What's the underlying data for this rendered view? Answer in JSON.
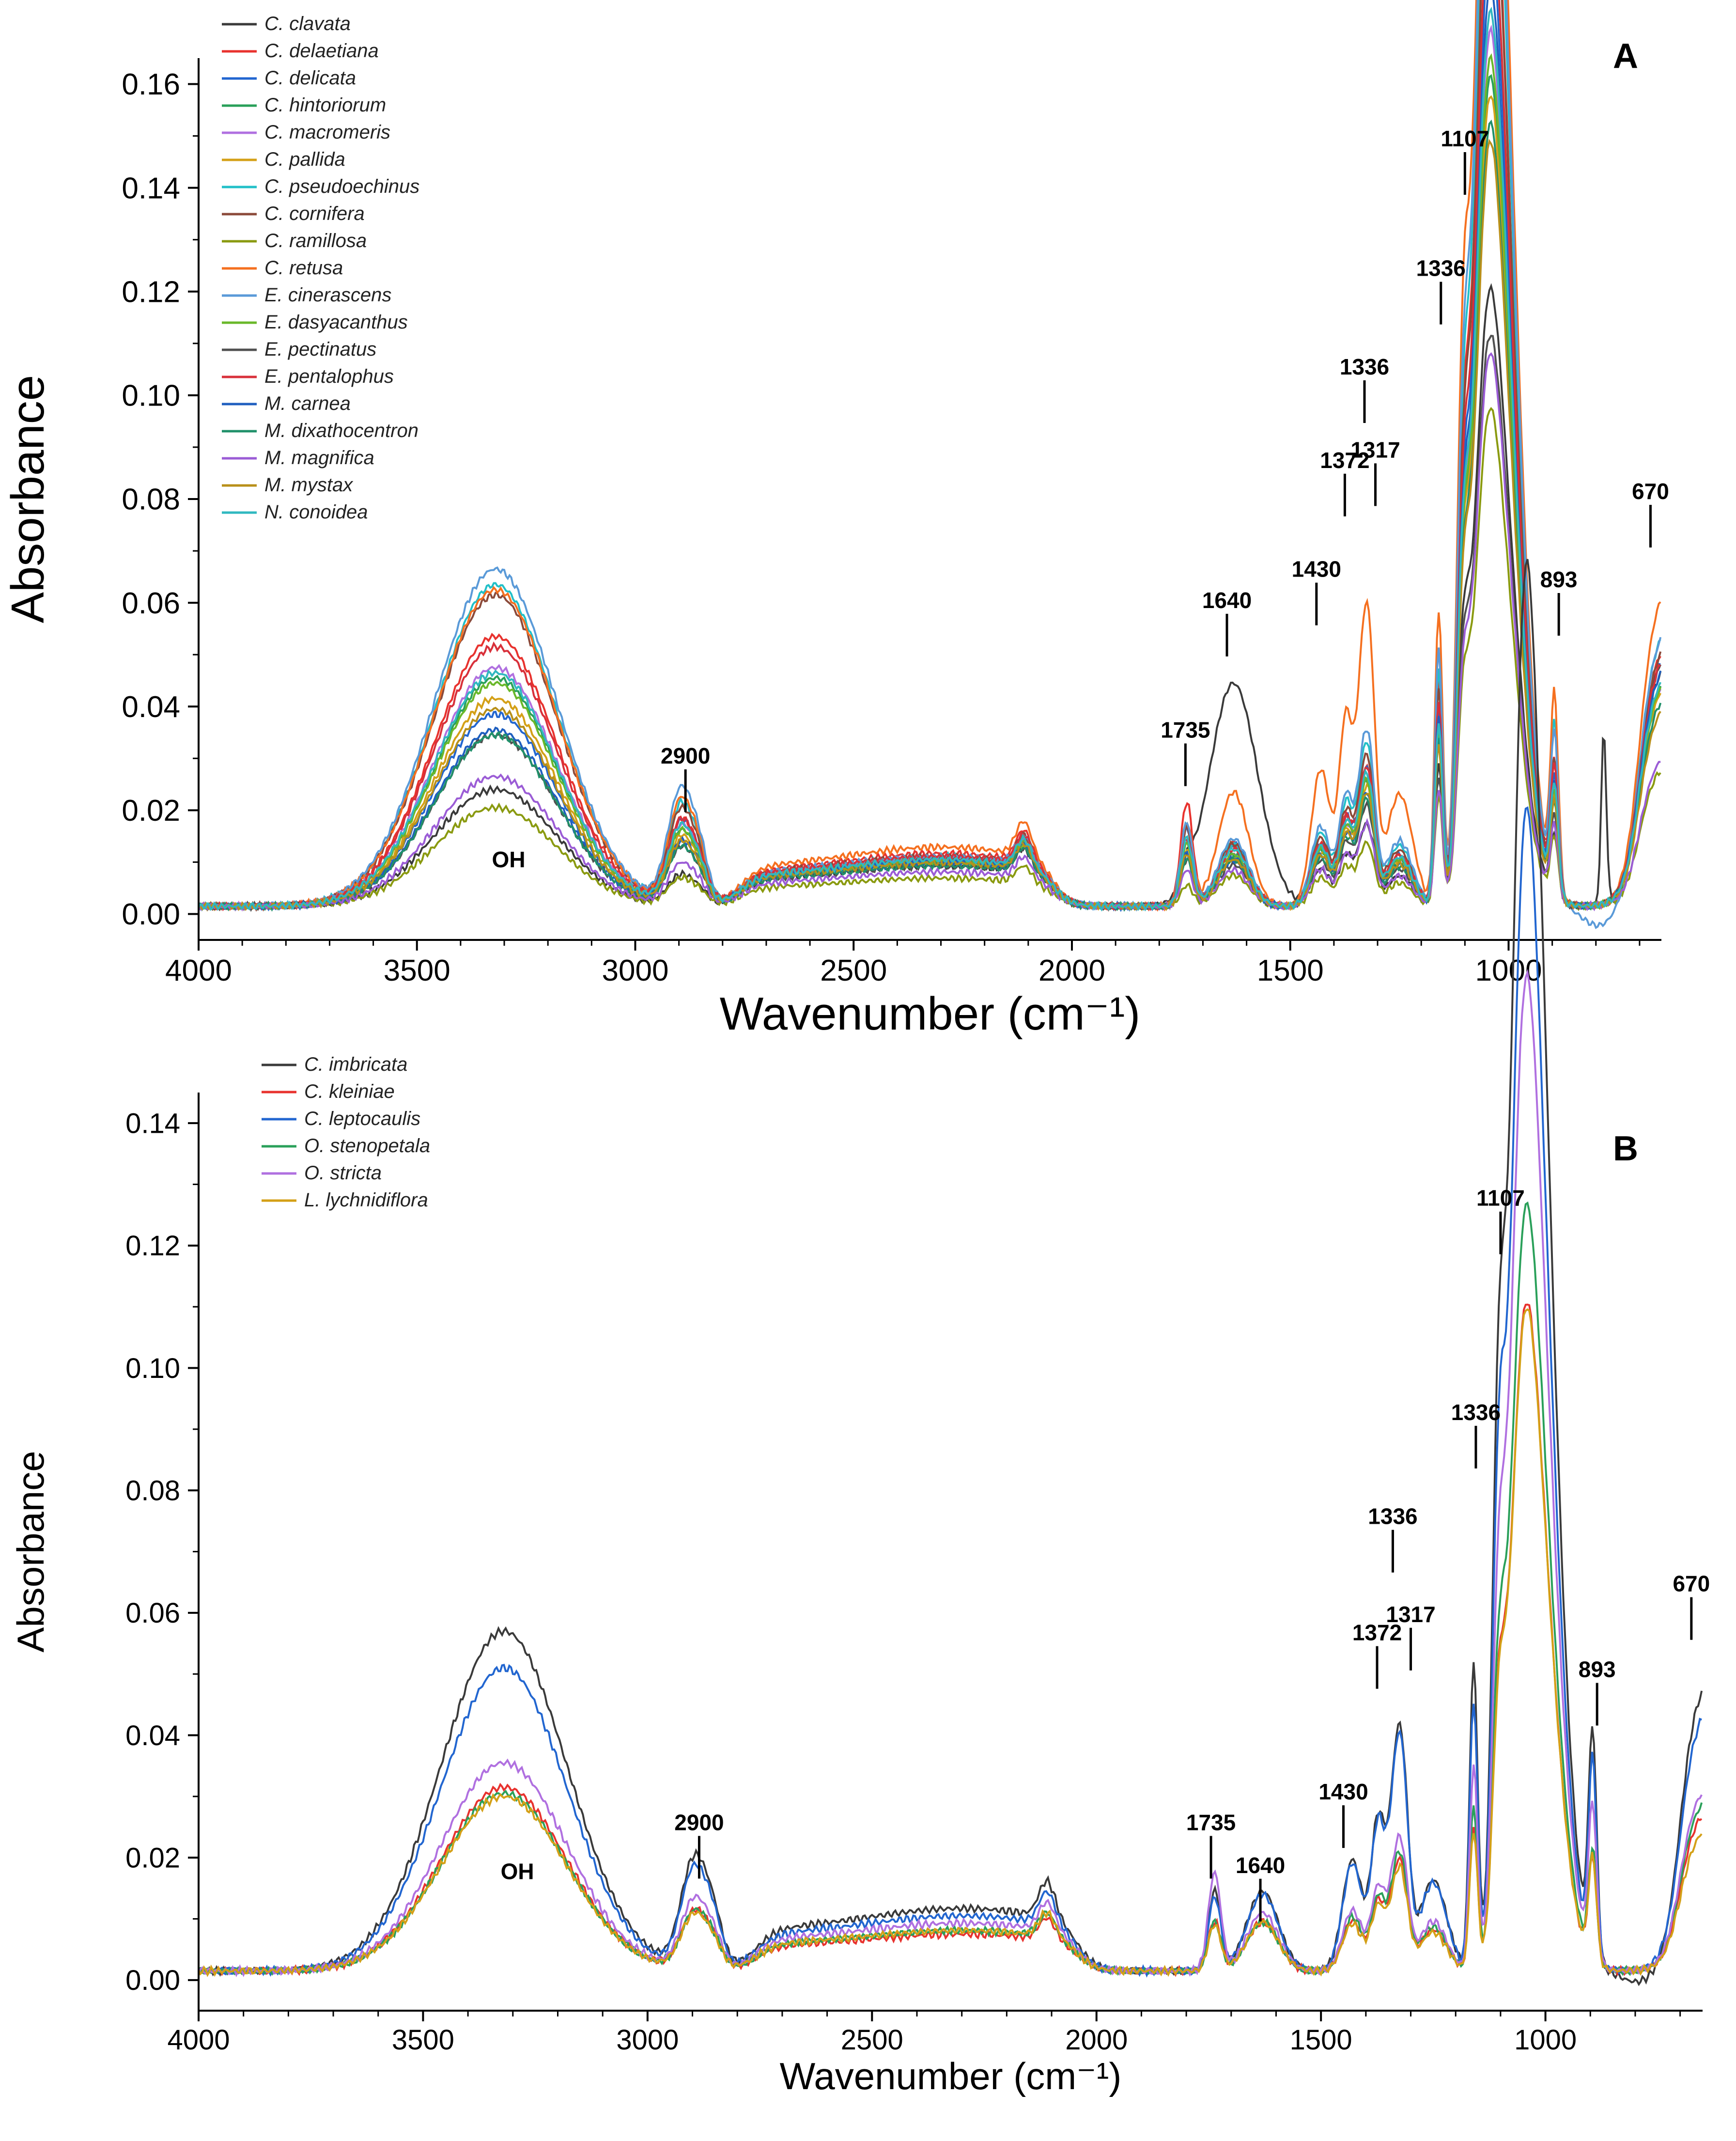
{
  "chart_data": [
    {
      "type": "line",
      "panel_label": "A",
      "xlabel": "Wavenumber (cm⁻¹)",
      "ylabel": "Absorbance",
      "xlim": [
        4000,
        650
      ],
      "ylim": [
        -0.005,
        0.165
      ],
      "x_ticks": [
        "4000",
        "3500",
        "3000",
        "2500",
        "2000",
        "1500",
        "1000"
      ],
      "y_ticks": [
        "0.00",
        "0.02",
        "0.04",
        "0.06",
        "0.08",
        "0.10",
        "0.12",
        "0.14",
        "0.16"
      ],
      "legend_position": "top-left",
      "annotations": [
        {
          "text": "2900",
          "x": 2885,
          "y": 0.029
        },
        {
          "text": "OH",
          "x": 3290,
          "y": 0.009
        },
        {
          "text": "1735",
          "x": 1740,
          "y": 0.034
        },
        {
          "text": "1640",
          "x": 1645,
          "y": 0.059
        },
        {
          "text": "1430",
          "x": 1440,
          "y": 0.065
        },
        {
          "text": "1372",
          "x": 1375,
          "y": 0.086
        },
        {
          "text": "1336",
          "x": 1330,
          "y": 0.104
        },
        {
          "text": "1317",
          "x": 1305,
          "y": 0.088
        },
        {
          "text": "1336",
          "x": 1155,
          "y": 0.123
        },
        {
          "text": "1107",
          "x": 1100,
          "y": 0.148
        },
        {
          "text": "893",
          "x": 885,
          "y": 0.063
        },
        {
          "text": "670",
          "x": 675,
          "y": 0.08
        }
      ],
      "series": [
        {
          "name": "C. clavata",
          "color": "#3a3a3a",
          "oh": 0.0225,
          "ch": 0.0058,
          "sugar": 0.0065,
          "c1735": 0.004,
          "c1640": 0.043,
          "mid": 0.013,
          "main": 0.067,
          "p1107": 0.036,
          "p893": 0.012,
          "p670": 0.048,
          "extra": "sharp780"
        },
        {
          "name": "C. delaetiana",
          "color": "#e8322e",
          "oh": 0.052,
          "ch": 0.016,
          "sugar": 0.0085,
          "c1735": 0.02,
          "c1640": 0.012,
          "mid": 0.022,
          "main": 0.12,
          "p1107": 0.058,
          "p893": 0.025,
          "p670": 0.052
        },
        {
          "name": "C. delicata",
          "color": "#2266d0",
          "oh": 0.037,
          "ch": 0.016,
          "sugar": 0.0075,
          "c1735": 0.015,
          "c1640": 0.012,
          "mid": 0.022,
          "main": 0.105,
          "p1107": 0.05,
          "p893": 0.022,
          "p670": 0.05
        },
        {
          "name": "C. hintoriorum",
          "color": "#2aa05a",
          "oh": 0.044,
          "ch": 0.014,
          "sugar": 0.0075,
          "c1735": 0.012,
          "c1640": 0.01,
          "mid": 0.02,
          "main": 0.09,
          "p1107": 0.045,
          "p893": 0.02,
          "p670": 0.045
        },
        {
          "name": "C. macromeris",
          "color": "#b070e0",
          "oh": 0.046,
          "ch": 0.015,
          "sugar": 0.0075,
          "c1735": 0.012,
          "c1640": 0.01,
          "mid": 0.02,
          "main": 0.095,
          "p1107": 0.047,
          "p893": 0.02,
          "p670": 0.045
        },
        {
          "name": "C. pallida",
          "color": "#d4a017",
          "oh": 0.04,
          "ch": 0.013,
          "sugar": 0.007,
          "c1735": 0.011,
          "c1640": 0.009,
          "mid": 0.019,
          "main": 0.088,
          "p1107": 0.044,
          "p893": 0.019,
          "p670": 0.044
        },
        {
          "name": "C. pseudoechinus",
          "color": "#22c0c8",
          "oh": 0.062,
          "ch": 0.019,
          "sugar": 0.008,
          "c1735": 0.016,
          "c1640": 0.012,
          "mid": 0.026,
          "main": 0.13,
          "p1107": 0.06,
          "p893": 0.032,
          "p670": 0.055
        },
        {
          "name": "C. cornifera",
          "color": "#8b4a3a",
          "oh": 0.06,
          "ch": 0.018,
          "sugar": 0.008,
          "c1735": 0.015,
          "c1640": 0.012,
          "mid": 0.024,
          "main": 0.118,
          "p1107": 0.055,
          "p893": 0.025,
          "p670": 0.052
        },
        {
          "name": "C. ramillosa",
          "color": "#8a9a10",
          "oh": 0.019,
          "ch": 0.0052,
          "sugar": 0.0045,
          "c1735": 0.004,
          "c1640": 0.006,
          "mid": 0.01,
          "main": 0.054,
          "p1107": 0.028,
          "p893": 0.012,
          "p670": 0.028
        },
        {
          "name": "C. retusa",
          "color": "#f57020",
          "oh": 0.061,
          "ch": 0.02,
          "sugar": 0.0095,
          "c1735": 0.016,
          "c1640": 0.022,
          "mid": 0.048,
          "main": 0.144,
          "p1107": 0.075,
          "p893": 0.037,
          "p670": 0.063
        },
        {
          "name": "E. cinerascens",
          "color": "#5a9ad8",
          "oh": 0.065,
          "ch": 0.022,
          "sugar": 0.008,
          "c1735": 0.016,
          "c1640": 0.013,
          "mid": 0.028,
          "main": 0.136,
          "p1107": 0.065,
          "p893": 0.03,
          "p670": 0.055,
          "dip": -0.004
        },
        {
          "name": "E. dasyacanthus",
          "color": "#6ab82a",
          "oh": 0.043,
          "ch": 0.014,
          "sugar": 0.007,
          "c1735": 0.012,
          "c1640": 0.01,
          "mid": 0.02,
          "main": 0.092,
          "p1107": 0.045,
          "p893": 0.02,
          "p670": 0.045
        },
        {
          "name": "E. pectinatus",
          "color": "#505050",
          "oh": 0.033,
          "ch": 0.011,
          "sugar": 0.0065,
          "c1735": 0.009,
          "c1640": 0.008,
          "mid": 0.016,
          "main": 0.062,
          "p1107": 0.033,
          "p893": 0.016,
          "p670": 0.05
        },
        {
          "name": "E. pentalophus",
          "color": "#d8303a",
          "oh": 0.05,
          "ch": 0.016,
          "sugar": 0.008,
          "c1735": 0.013,
          "c1640": 0.011,
          "mid": 0.022,
          "main": 0.11,
          "p1107": 0.052,
          "p893": 0.024,
          "p670": 0.05
        },
        {
          "name": "M. carnea",
          "color": "#1f5fbf",
          "oh": 0.034,
          "ch": 0.012,
          "sugar": 0.007,
          "c1735": 0.01,
          "c1640": 0.009,
          "mid": 0.018,
          "main": 0.1,
          "p1107": 0.048,
          "p893": 0.021,
          "p670": 0.048
        },
        {
          "name": "M. dixathocentron",
          "color": "#20906a",
          "oh": 0.033,
          "ch": 0.011,
          "sugar": 0.0065,
          "c1735": 0.009,
          "c1640": 0.009,
          "mid": 0.017,
          "main": 0.085,
          "p1107": 0.042,
          "p893": 0.018,
          "p670": 0.042
        },
        {
          "name": "M. magnifica",
          "color": "#9b5cd6",
          "oh": 0.025,
          "ch": 0.008,
          "sugar": 0.0055,
          "c1735": 0.007,
          "c1640": 0.007,
          "mid": 0.013,
          "main": 0.06,
          "p1107": 0.03,
          "p893": 0.014,
          "p670": 0.03
        },
        {
          "name": "M. mystax",
          "color": "#b8901a",
          "oh": 0.038,
          "ch": 0.012,
          "sugar": 0.007,
          "c1735": 0.01,
          "c1640": 0.009,
          "mid": 0.018,
          "main": 0.083,
          "p1107": 0.041,
          "p893": 0.018,
          "p670": 0.04
        },
        {
          "name": "N. conoidea",
          "color": "#30b8c0",
          "oh": 0.045,
          "ch": 0.015,
          "sugar": 0.0075,
          "c1735": 0.013,
          "c1640": 0.011,
          "mid": 0.021,
          "main": 0.097,
          "p1107": 0.046,
          "p893": 0.021,
          "p670": 0.046
        }
      ]
    },
    {
      "type": "line",
      "panel_label": "B",
      "xlabel": "Wavenumber (cm⁻¹)",
      "ylabel": "Absorbance",
      "xlim": [
        4000,
        650
      ],
      "ylim": [
        -0.005,
        0.145
      ],
      "x_ticks": [
        "4000",
        "3500",
        "3000",
        "2500",
        "2000",
        "1500",
        "1000"
      ],
      "y_ticks": [
        "0.00",
        "0.02",
        "0.04",
        "0.06",
        "0.08",
        "0.10",
        "0.12",
        "0.14"
      ],
      "legend_position": "top-left",
      "annotations": [
        {
          "text": "2900",
          "x": 2885,
          "y": 0.0245
        },
        {
          "text": "OH",
          "x": 3290,
          "y": 0.0165
        },
        {
          "text": "1735",
          "x": 1745,
          "y": 0.0245
        },
        {
          "text": "1640",
          "x": 1635,
          "y": 0.0175
        },
        {
          "text": "1430",
          "x": 1450,
          "y": 0.0295
        },
        {
          "text": "1372",
          "x": 1375,
          "y": 0.0555
        },
        {
          "text": "1336",
          "x": 1340,
          "y": 0.0745
        },
        {
          "text": "1317",
          "x": 1300,
          "y": 0.0585
        },
        {
          "text": "1336",
          "x": 1155,
          "y": 0.0915
        },
        {
          "text": "1107",
          "x": 1100,
          "y": 0.1265
        },
        {
          "text": "893",
          "x": 885,
          "y": 0.0495
        },
        {
          "text": "670",
          "x": 675,
          "y": 0.0635
        }
      ],
      "series": [
        {
          "name": "C. imbricata",
          "color": "#3a3a3a",
          "oh": 0.0555,
          "ch": 0.018,
          "sugar": 0.0085,
          "c1735": 0.013,
          "c1640": 0.013,
          "mid": 0.033,
          "main": 0.1295,
          "p1107": 0.066,
          "p893": 0.036,
          "p670": 0.0485,
          "dip": -0.002
        },
        {
          "name": "C. kleiniae",
          "color": "#e8322e",
          "oh": 0.03,
          "ch": 0.0095,
          "sugar": 0.005,
          "c1735": 0.008,
          "c1640": 0.008,
          "mid": 0.015,
          "main": 0.0615,
          "p1107": 0.031,
          "p893": 0.017,
          "p670": 0.027
        },
        {
          "name": "C. leptocaulis",
          "color": "#2266d0",
          "oh": 0.0495,
          "ch": 0.0165,
          "sugar": 0.0075,
          "c1735": 0.012,
          "c1640": 0.0125,
          "mid": 0.032,
          "main": 0.107,
          "p1107": 0.058,
          "p893": 0.032,
          "p670": 0.044
        },
        {
          "name": "O. stenopetala",
          "color": "#2aa05a",
          "oh": 0.029,
          "ch": 0.0095,
          "sugar": 0.0055,
          "c1735": 0.008,
          "c1640": 0.008,
          "mid": 0.016,
          "main": 0.0705,
          "p1107": 0.035,
          "p893": 0.018,
          "p670": 0.029
        },
        {
          "name": "O. stricta",
          "color": "#b070e0",
          "oh": 0.034,
          "ch": 0.0115,
          "sugar": 0.0065,
          "c1735": 0.016,
          "c1640": 0.0095,
          "mid": 0.018,
          "main": 0.0915,
          "p1107": 0.044,
          "p893": 0.025,
          "p670": 0.031
        },
        {
          "name": "L. lychnidiflora",
          "color": "#d4a017",
          "oh": 0.0285,
          "ch": 0.009,
          "sugar": 0.0055,
          "c1735": 0.0075,
          "c1640": 0.008,
          "mid": 0.014,
          "main": 0.061,
          "p1107": 0.03,
          "p893": 0.017,
          "p670": 0.024
        }
      ]
    }
  ]
}
